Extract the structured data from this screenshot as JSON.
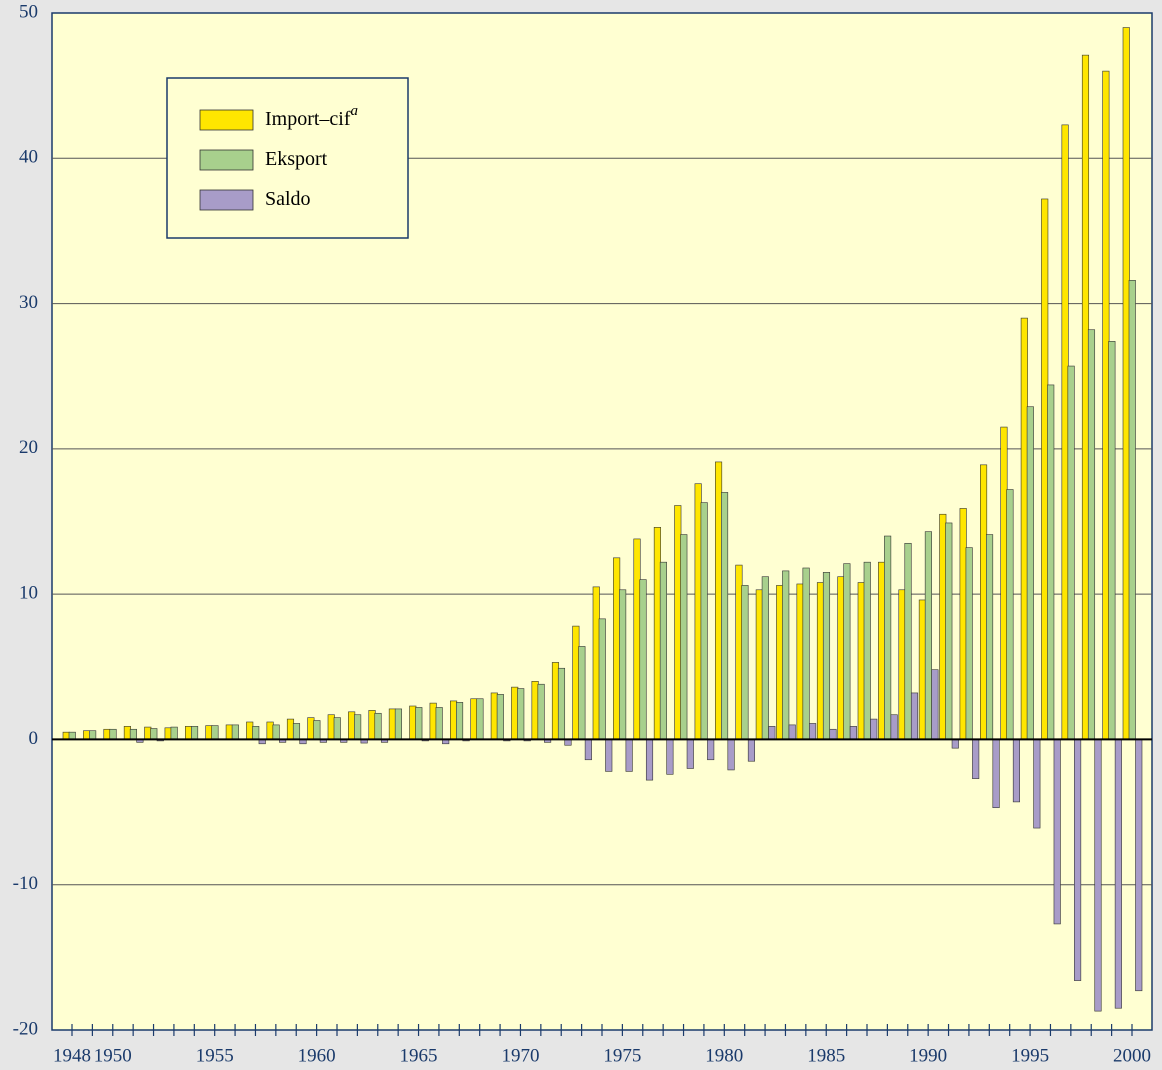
{
  "chart_data": {
    "type": "bar",
    "categories": [
      "1948",
      null,
      "1950",
      null,
      null,
      null,
      null,
      "1955",
      null,
      null,
      null,
      null,
      "1960",
      null,
      null,
      null,
      null,
      "1965",
      null,
      null,
      null,
      null,
      "1970",
      null,
      null,
      null,
      null,
      "1975",
      null,
      null,
      null,
      null,
      "1980",
      null,
      null,
      null,
      null,
      "1985",
      null,
      null,
      null,
      null,
      "1990",
      null,
      null,
      null,
      null,
      "1995",
      null,
      null,
      null,
      null,
      "2000"
    ],
    "series": [
      {
        "name": "Import–cif",
        "footnote_mark": "a",
        "color": "#ffe600",
        "values": [
          0.5,
          0.6,
          0.7,
          0.9,
          0.85,
          0.8,
          0.9,
          0.95,
          1.0,
          1.2,
          1.2,
          1.4,
          1.5,
          1.7,
          1.9,
          2.0,
          2.1,
          2.3,
          2.5,
          2.65,
          2.8,
          3.2,
          3.6,
          4.0,
          5.3,
          7.8,
          10.5,
          12.5,
          13.8,
          14.6,
          16.1,
          17.6,
          19.1,
          12.0,
          10.3,
          10.6,
          10.7,
          10.8,
          11.2,
          10.8,
          12.2,
          10.3,
          9.6,
          15.5,
          15.9,
          18.9,
          21.5,
          29.0,
          37.2,
          42.3,
          47.1,
          46.0,
          49.0
        ]
      },
      {
        "name": "Eksport",
        "color": "#a8d08d",
        "values": [
          0.5,
          0.6,
          0.7,
          0.7,
          0.75,
          0.85,
          0.9,
          0.95,
          1.0,
          0.9,
          1.0,
          1.1,
          1.3,
          1.5,
          1.7,
          1.8,
          2.1,
          2.2,
          2.2,
          2.55,
          2.8,
          3.1,
          3.5,
          3.8,
          4.9,
          6.4,
          8.3,
          10.3,
          11.0,
          12.2,
          14.1,
          16.3,
          17.0,
          10.6,
          11.2,
          11.6,
          11.8,
          11.5,
          12.1,
          12.2,
          14.0,
          13.5,
          14.3,
          14.9,
          13.2,
          14.1,
          17.2,
          22.9,
          24.4,
          25.7,
          28.2,
          27.4,
          31.6
        ]
      },
      {
        "name": "Saldo",
        "color": "#a89cc8",
        "values": [
          0,
          0,
          0,
          -0.2,
          -0.1,
          0,
          0,
          0,
          0,
          -0.3,
          -0.2,
          -0.3,
          -0.2,
          -0.2,
          -0.25,
          -0.2,
          0,
          -0.1,
          -0.3,
          -0.1,
          0,
          -0.1,
          -0.1,
          -0.2,
          -0.4,
          -1.4,
          -2.2,
          -2.2,
          -2.8,
          -2.4,
          -2.0,
          -1.4,
          -2.1,
          -1.5,
          0.9,
          1.0,
          1.1,
          0.7,
          0.9,
          1.4,
          1.7,
          3.2,
          4.8,
          -0.6,
          -2.7,
          -4.7,
          -4.3,
          -6.1,
          -12.7,
          -16.6,
          -18.7,
          -18.5,
          -17.3
        ]
      }
    ],
    "ylim": [
      -20,
      50
    ],
    "yticks": [
      -20,
      -10,
      0,
      10,
      20,
      30,
      40,
      50
    ],
    "grid": true
  }
}
